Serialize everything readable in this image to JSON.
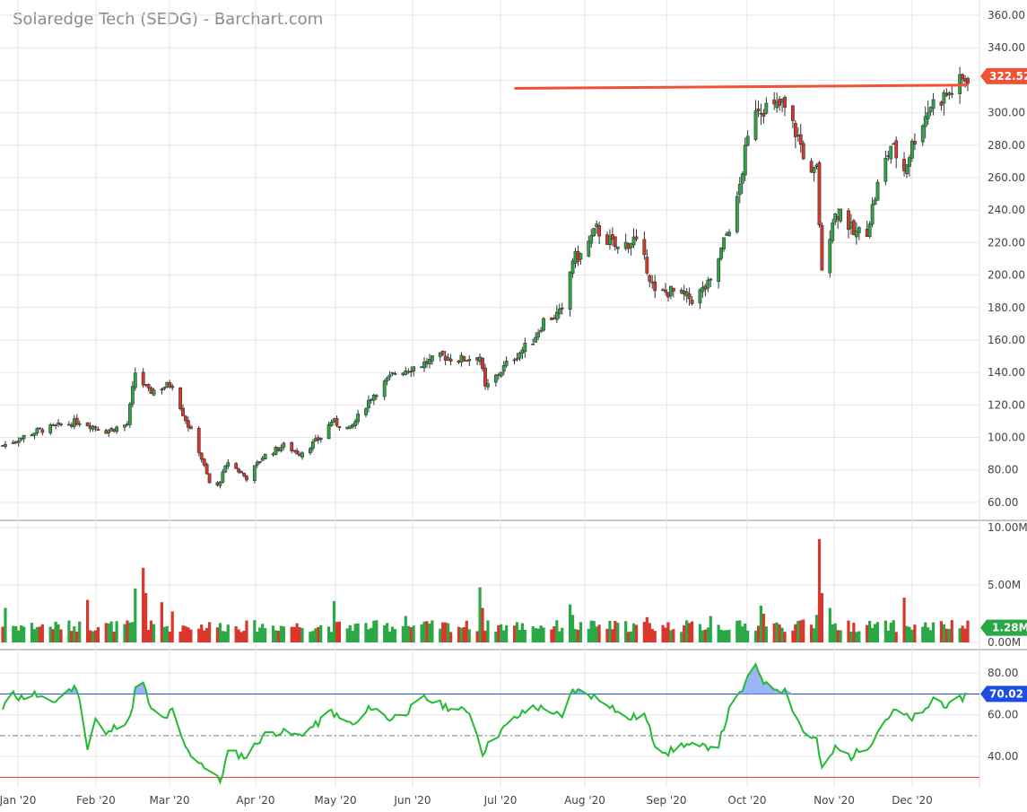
{
  "title": "Solaredge Tech (SEDG) - Barchart.com",
  "colors": {
    "up": "#2aa845",
    "down": "#d9372b",
    "grid": "#e6e6e6",
    "axis_text": "#444444",
    "resistance": "#ef5235",
    "price_badge": "#ef5235",
    "volume_badge": "#2aa845",
    "rsi_line": "#22bb33",
    "rsi_upper": "#1e4ee0",
    "rsi_lower": "#e0303a",
    "rsi_badge": "#1e4ee0"
  },
  "labels": {
    "price_badge": "322.52",
    "volume_badge": "1.28M",
    "rsi_badge": "70.02"
  },
  "chart_data": [
    {
      "type": "candlestick",
      "title": "Solaredge Tech (SEDG) - Barchart.com",
      "ylim": [
        50,
        365
      ],
      "y_ticks": [
        "360.00",
        "340.00",
        "320.00",
        "300.00",
        "280.00",
        "260.00",
        "240.00",
        "220.00",
        "200.00",
        "180.00",
        "160.00",
        "140.00",
        "120.00",
        "100.00",
        "80.00",
        "60.00"
      ],
      "x_tick_labels": [
        "Jan '20",
        "Feb '20",
        "Mar '20",
        "Apr '20",
        "May '20",
        "Jun '20",
        "Jul '20",
        "Aug '20",
        "Sep '20",
        "Oct '20",
        "Nov '20",
        "Dec '20"
      ],
      "x_range": [
        "2020-01-02",
        "2020-12-31"
      ],
      "close_path": [
        [
          "2020-01-02",
          95
        ],
        [
          "2020-01-15",
          104
        ],
        [
          "2020-01-31",
          110
        ],
        [
          "2020-02-10",
          104
        ],
        [
          "2020-02-18",
          108
        ],
        [
          "2020-02-21",
          140
        ],
        [
          "2020-02-26",
          128
        ],
        [
          "2020-03-06",
          133
        ],
        [
          "2020-03-10",
          115
        ],
        [
          "2020-03-16",
          92
        ],
        [
          "2020-03-20",
          72
        ],
        [
          "2020-03-23",
          70
        ],
        [
          "2020-03-27",
          85
        ],
        [
          "2020-04-03",
          75
        ],
        [
          "2020-04-09",
          88
        ],
        [
          "2020-04-17",
          95
        ],
        [
          "2020-04-23",
          90
        ],
        [
          "2020-05-01",
          100
        ],
        [
          "2020-05-05",
          110
        ],
        [
          "2020-05-12",
          105
        ],
        [
          "2020-05-20",
          125
        ],
        [
          "2020-05-29",
          140
        ],
        [
          "2020-06-08",
          145
        ],
        [
          "2020-06-16",
          150
        ],
        [
          "2020-06-22",
          148
        ],
        [
          "2020-06-30",
          150
        ],
        [
          "2020-07-02",
          130
        ],
        [
          "2020-07-10",
          145
        ],
        [
          "2020-07-20",
          160
        ],
        [
          "2020-07-24",
          172
        ],
        [
          "2020-07-31",
          177
        ],
        [
          "2020-08-04",
          210
        ],
        [
          "2020-08-07",
          212
        ],
        [
          "2020-08-13",
          228
        ],
        [
          "2020-08-21",
          216
        ],
        [
          "2020-08-27",
          222
        ],
        [
          "2020-09-01",
          205
        ],
        [
          "2020-09-04",
          188
        ],
        [
          "2020-09-10",
          190
        ],
        [
          "2020-09-18",
          185
        ],
        [
          "2020-09-25",
          195
        ],
        [
          "2020-10-05",
          245
        ],
        [
          "2020-10-08",
          275
        ],
        [
          "2020-10-12",
          305
        ],
        [
          "2020-10-19",
          302
        ],
        [
          "2020-10-22",
          305
        ],
        [
          "2020-10-28",
          285
        ],
        [
          "2020-11-02",
          260
        ],
        [
          "2020-11-04",
          265
        ],
        [
          "2020-11-06",
          200
        ],
        [
          "2020-11-10",
          235
        ],
        [
          "2020-11-13",
          240
        ],
        [
          "2020-11-18",
          225
        ],
        [
          "2020-11-23",
          228
        ],
        [
          "2020-11-27",
          255
        ],
        [
          "2020-12-02",
          280
        ],
        [
          "2020-12-07",
          265
        ],
        [
          "2020-12-11",
          285
        ],
        [
          "2020-12-17",
          305
        ],
        [
          "2020-12-24",
          312
        ],
        [
          "2020-12-31",
          322.52
        ]
      ],
      "resistance_line": {
        "from": [
          "2020-07-13",
          315
        ],
        "to": [
          "2020-12-31",
          317
        ]
      },
      "last_price": 322.52
    },
    {
      "type": "bar",
      "name": "Volume",
      "ylim": [
        0,
        10
      ],
      "y_ticks": [
        "10.00M",
        "5.00M",
        "0.00M"
      ],
      "typical_m": 1.3,
      "spikes_m": [
        [
          "2020-01-03",
          3.0
        ],
        [
          "2020-02-03",
          3.7
        ],
        [
          "2020-02-24",
          6.5
        ],
        [
          "2020-02-21",
          4.7
        ],
        [
          "2020-02-25",
          4.3
        ],
        [
          "2020-03-02",
          3.5
        ],
        [
          "2020-03-06",
          2.7
        ],
        [
          "2020-05-06",
          3.6
        ],
        [
          "2020-06-02",
          2.3
        ],
        [
          "2020-06-30",
          4.8
        ],
        [
          "2020-07-01",
          3.0
        ],
        [
          "2020-08-03",
          3.3
        ],
        [
          "2020-08-04",
          2.4
        ],
        [
          "2020-09-01",
          2.2
        ],
        [
          "2020-09-25",
          2.3
        ],
        [
          "2020-10-14",
          3.2
        ],
        [
          "2020-10-15",
          2.5
        ],
        [
          "2020-10-30",
          2.0
        ],
        [
          "2020-11-04",
          2.4
        ],
        [
          "2020-11-05",
          9.0
        ],
        [
          "2020-11-06",
          4.3
        ],
        [
          "2020-11-09",
          3.0
        ],
        [
          "2020-12-07",
          3.9
        ]
      ],
      "last_volume_m": 1.28
    },
    {
      "type": "line",
      "name": "RSI",
      "ylim": [
        25,
        90
      ],
      "y_ticks": [
        "80.00",
        "60.00",
        "40.00"
      ],
      "levels": [
        70,
        30
      ],
      "midline": 50,
      "points": [
        [
          "2020-01-02",
          62
        ],
        [
          "2020-01-06",
          72
        ],
        [
          "2020-01-08",
          68
        ],
        [
          "2020-01-14",
          70
        ],
        [
          "2020-01-20",
          65
        ],
        [
          "2020-01-27",
          72
        ],
        [
          "2020-01-30",
          73
        ],
        [
          "2020-02-03",
          45
        ],
        [
          "2020-02-06",
          58
        ],
        [
          "2020-02-10",
          50
        ],
        [
          "2020-02-14",
          55
        ],
        [
          "2020-02-19",
          58
        ],
        [
          "2020-02-21",
          72
        ],
        [
          "2020-02-24",
          75
        ],
        [
          "2020-02-27",
          62
        ],
        [
          "2020-03-03",
          58
        ],
        [
          "2020-03-06",
          62
        ],
        [
          "2020-03-09",
          50
        ],
        [
          "2020-03-12",
          42
        ],
        [
          "2020-03-16",
          38
        ],
        [
          "2020-03-20",
          33
        ],
        [
          "2020-03-24",
          28
        ],
        [
          "2020-03-27",
          42
        ],
        [
          "2020-04-03",
          40
        ],
        [
          "2020-04-09",
          50
        ],
        [
          "2020-04-15",
          52
        ],
        [
          "2020-04-22",
          50
        ],
        [
          "2020-04-29",
          55
        ],
        [
          "2020-05-05",
          62
        ],
        [
          "2020-05-08",
          58
        ],
        [
          "2020-05-14",
          55
        ],
        [
          "2020-05-20",
          64
        ],
        [
          "2020-05-27",
          58
        ],
        [
          "2020-06-03",
          62
        ],
        [
          "2020-06-09",
          68
        ],
        [
          "2020-06-15",
          65
        ],
        [
          "2020-06-22",
          62
        ],
        [
          "2020-06-26",
          62
        ],
        [
          "2020-07-01",
          42
        ],
        [
          "2020-07-06",
          50
        ],
        [
          "2020-07-13",
          58
        ],
        [
          "2020-07-20",
          64
        ],
        [
          "2020-07-27",
          62
        ],
        [
          "2020-07-31",
          58
        ],
        [
          "2020-08-04",
          72
        ],
        [
          "2020-08-10",
          70
        ],
        [
          "2020-08-17",
          66
        ],
        [
          "2020-08-24",
          58
        ],
        [
          "2020-08-31",
          60
        ],
        [
          "2020-09-04",
          46
        ],
        [
          "2020-09-09",
          42
        ],
        [
          "2020-09-15",
          46
        ],
        [
          "2020-09-21",
          44
        ],
        [
          "2020-09-28",
          46
        ],
        [
          "2020-10-02",
          62
        ],
        [
          "2020-10-07",
          72
        ],
        [
          "2020-10-12",
          84
        ],
        [
          "2020-10-16",
          74
        ],
        [
          "2020-10-23",
          72
        ],
        [
          "2020-10-27",
          60
        ],
        [
          "2020-10-30",
          52
        ],
        [
          "2020-11-04",
          48
        ],
        [
          "2020-11-06",
          33
        ],
        [
          "2020-11-11",
          44
        ],
        [
          "2020-11-17",
          40
        ],
        [
          "2020-11-24",
          46
        ],
        [
          "2020-11-30",
          58
        ],
        [
          "2020-12-04",
          62
        ],
        [
          "2020-12-09",
          58
        ],
        [
          "2020-12-14",
          60
        ],
        [
          "2020-12-18",
          68
        ],
        [
          "2020-12-24",
          64
        ],
        [
          "2020-12-31",
          70.02
        ]
      ],
      "last_value": 70.02
    }
  ]
}
